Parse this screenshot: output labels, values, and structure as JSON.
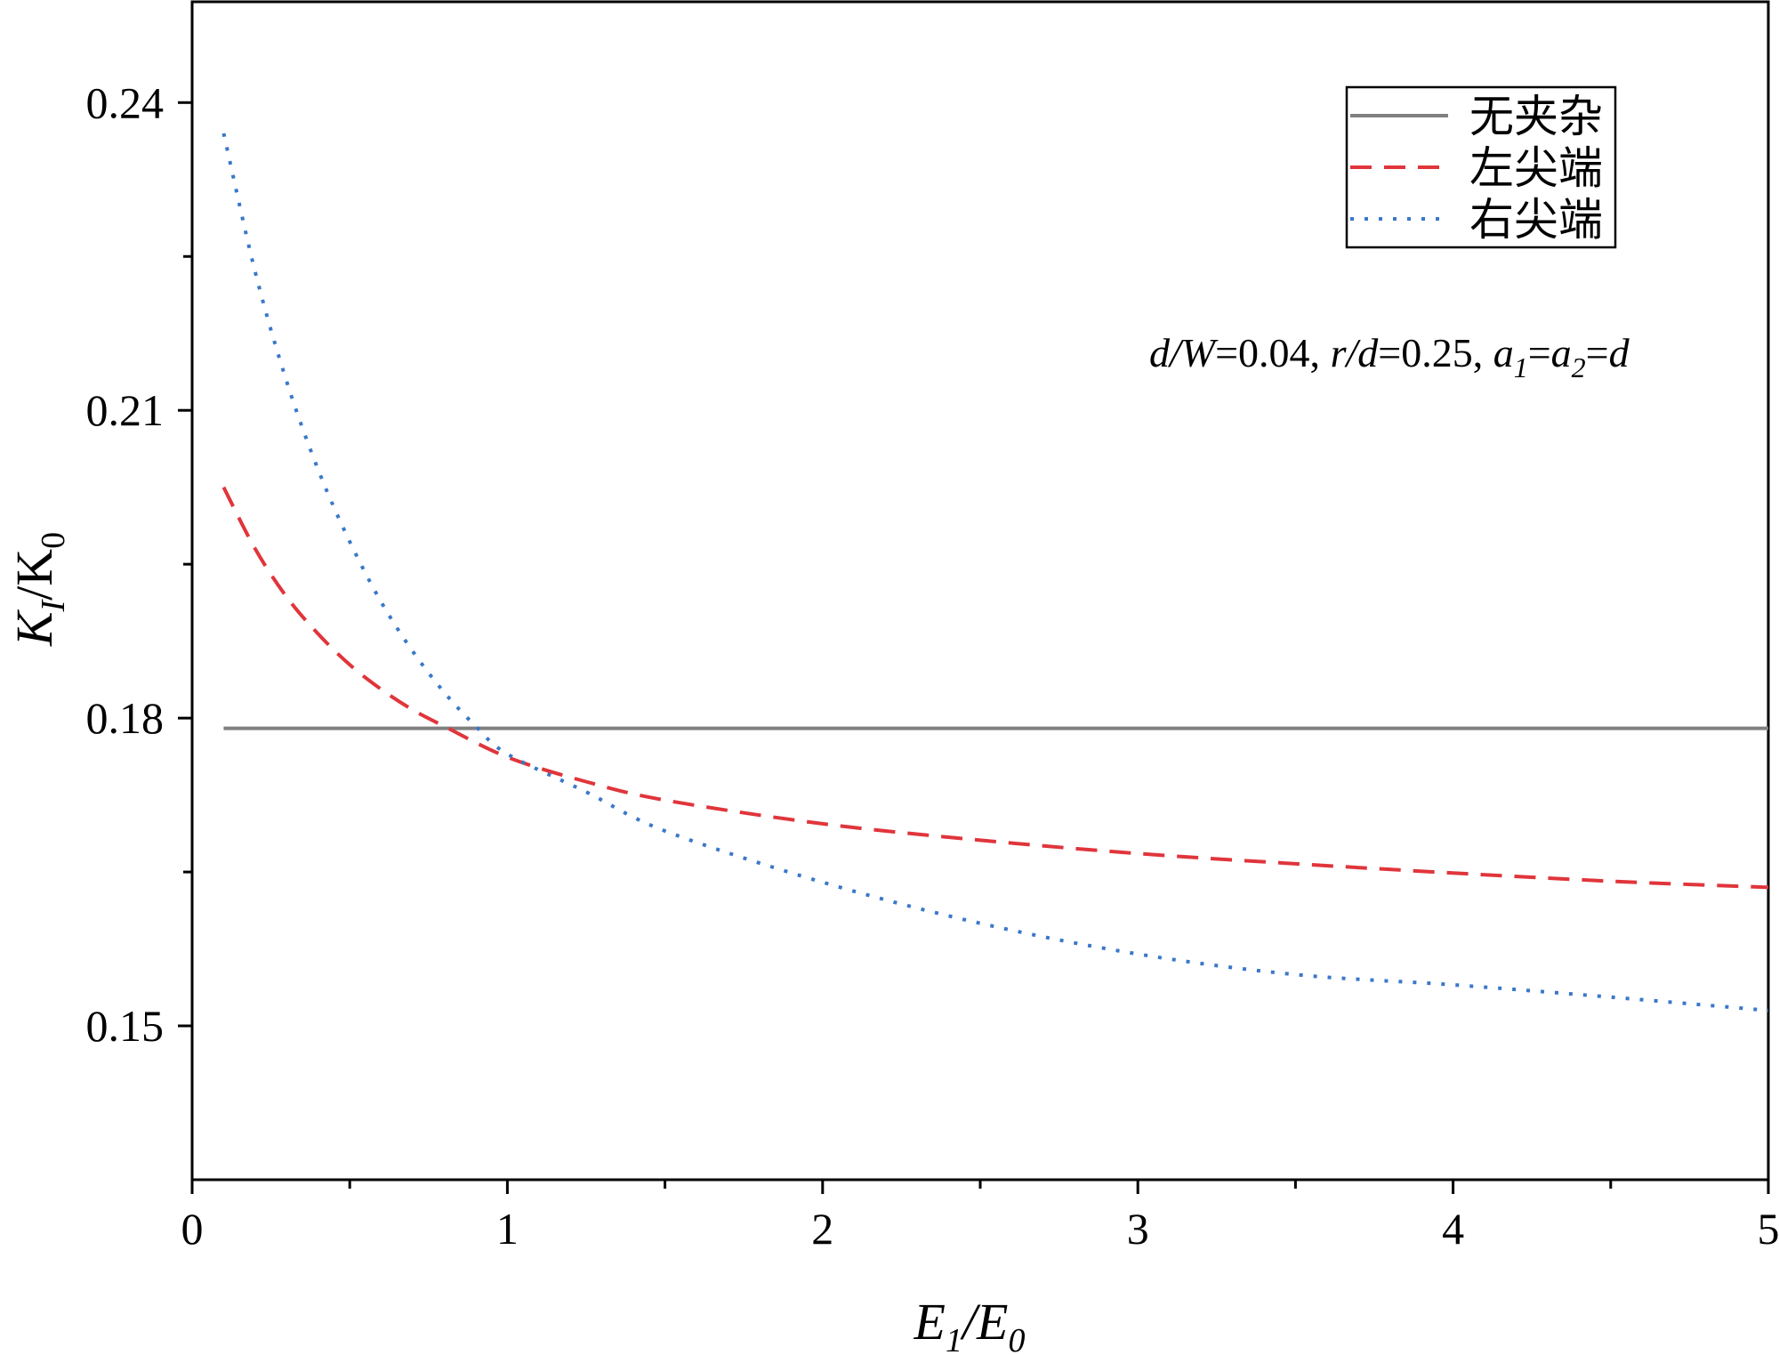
{
  "chart_data": {
    "type": "line",
    "xlim": [
      0,
      5
    ],
    "ylim": [
      0.135,
      0.25
    ],
    "x_ticks": [
      "0",
      "1",
      "2",
      "3",
      "4",
      "5"
    ],
    "x_tick_values": [
      0,
      1,
      2,
      3,
      4,
      5
    ],
    "y_ticks": [
      "0.15",
      "0.18",
      "0.21",
      "0.24"
    ],
    "y_tick_values": [
      0.15,
      0.18,
      0.21,
      0.24
    ],
    "xlabel": "E1/E0",
    "ylabel": "KI/K0",
    "annotation": "d/W=0.04, r/d=0.25, a1=a2=d",
    "legend_position": "top-right",
    "grid": false,
    "series": [
      {
        "name": "无夹杂",
        "color": "#808080",
        "style": "solid",
        "x": [
          0.1,
          5
        ],
        "y": [
          0.179,
          0.179
        ]
      },
      {
        "name": "左尖端",
        "color": "#e0353b",
        "style": "dashed",
        "x": [
          0.1,
          0.2,
          0.3,
          0.4,
          0.5,
          0.6,
          0.7,
          0.8,
          1.0,
          1.25,
          1.5,
          2.0,
          2.5,
          3.0,
          3.5,
          4.0,
          4.5,
          5.0
        ],
        "y": [
          0.2025,
          0.1965,
          0.1918,
          0.1882,
          0.1852,
          0.1828,
          0.1808,
          0.1792,
          0.1762,
          0.1738,
          0.172,
          0.1697,
          0.1681,
          0.1668,
          0.1658,
          0.1649,
          0.1641,
          0.1635
        ]
      },
      {
        "name": "右尖端",
        "color": "#3a78c8",
        "style": "dotted",
        "x": [
          0.1,
          0.2,
          0.3,
          0.4,
          0.5,
          0.6,
          0.7,
          0.8,
          0.9,
          1.0,
          1.25,
          1.5,
          2.0,
          2.5,
          3.0,
          3.5,
          4.0,
          4.5,
          5.0
        ],
        "y": [
          0.237,
          0.2235,
          0.2128,
          0.2042,
          0.1972,
          0.1913,
          0.1865,
          0.1825,
          0.1792,
          0.1765,
          0.1728,
          0.169,
          0.164,
          0.16,
          0.157,
          0.155,
          0.154,
          0.1528,
          0.1515
        ]
      }
    ]
  }
}
